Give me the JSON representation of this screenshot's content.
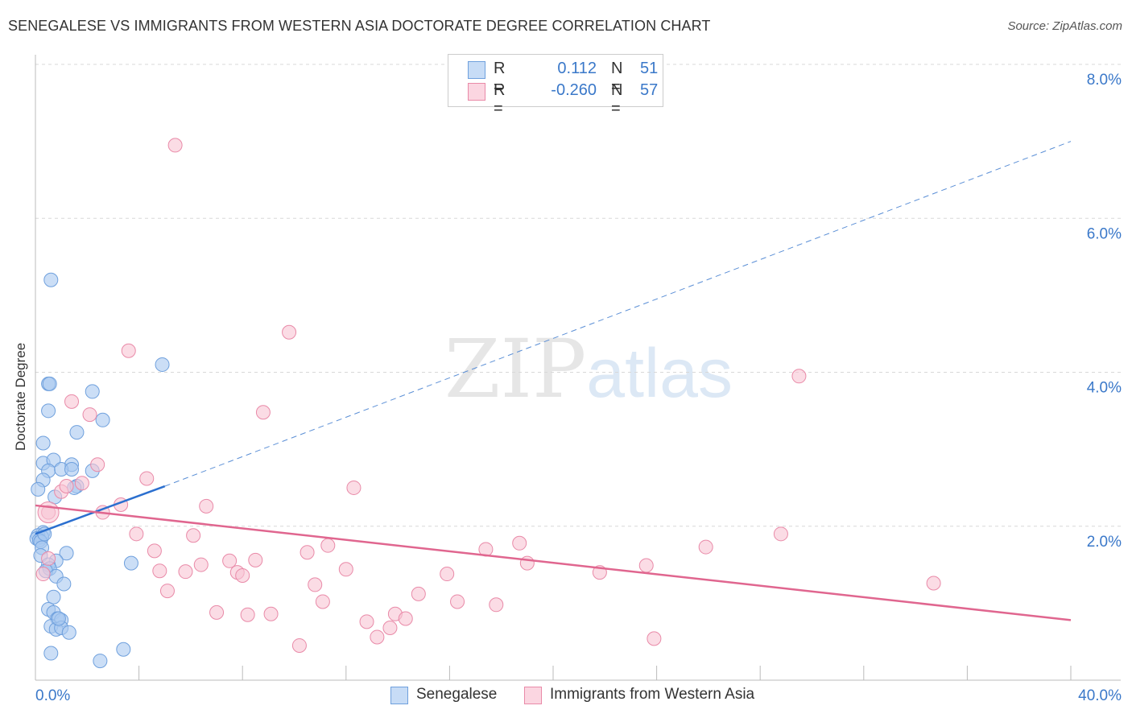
{
  "title": "SENEGALESE VS IMMIGRANTS FROM WESTERN ASIA DOCTORATE DEGREE CORRELATION CHART",
  "source": "Source: ZipAtlas.com",
  "watermark": {
    "zip": "ZIP",
    "atlas": "atlas"
  },
  "legend": {
    "rows": [
      {
        "r_label": "R =",
        "r_value": "0.112",
        "n_label": "N =",
        "n_value": "51",
        "color": "#a9c8f0",
        "border": "#6fa0dd"
      },
      {
        "r_label": "R =",
        "r_value": "-0.260",
        "n_label": "N =",
        "n_value": "57",
        "color": "#f8c4d4",
        "border": "#e98aa8"
      }
    ]
  },
  "bottom_legend": [
    {
      "label": "Senegalese",
      "color": "#a9c8f0",
      "border": "#6fa0dd"
    },
    {
      "label": "Immigrants from Western Asia",
      "color": "#f8c4d4",
      "border": "#e98aa8"
    }
  ],
  "chart_data": {
    "type": "scatter",
    "ylabel": "Doctorate Degree",
    "xlim": [
      0,
      40
    ],
    "ylim": [
      0,
      8
    ],
    "x_tick_labels": [
      "0.0%",
      "40.0%"
    ],
    "y_ticks": [
      2,
      4,
      6,
      8
    ],
    "y_tick_labels": [
      "2.0%",
      "4.0%",
      "6.0%",
      "8.0%"
    ],
    "grid": true,
    "series": [
      {
        "name": "Senegalese",
        "color": "#6fa0dd",
        "fill": "#a9c8f0",
        "points": [
          [
            0.6,
            5.2
          ],
          [
            4.9,
            4.1
          ],
          [
            0.5,
            3.85
          ],
          [
            0.55,
            3.85
          ],
          [
            2.2,
            3.75
          ],
          [
            0.5,
            3.5
          ],
          [
            2.6,
            3.38
          ],
          [
            1.6,
            3.22
          ],
          [
            0.3,
            3.08
          ],
          [
            0.3,
            2.82
          ],
          [
            0.7,
            2.86
          ],
          [
            1.4,
            2.8
          ],
          [
            0.5,
            2.72
          ],
          [
            1.0,
            2.74
          ],
          [
            1.4,
            2.74
          ],
          [
            2.2,
            2.72
          ],
          [
            0.3,
            2.6
          ],
          [
            1.6,
            2.52
          ],
          [
            1.5,
            2.5
          ],
          [
            0.1,
            2.48
          ],
          [
            0.75,
            2.38
          ],
          [
            0.3,
            1.92
          ],
          [
            0.1,
            1.88
          ],
          [
            0.05,
            1.84
          ],
          [
            0.25,
            1.86
          ],
          [
            0.15,
            1.82
          ],
          [
            0.2,
            1.8
          ],
          [
            0.25,
            1.72
          ],
          [
            0.2,
            1.62
          ],
          [
            1.2,
            1.65
          ],
          [
            0.8,
            1.55
          ],
          [
            3.7,
            1.52
          ],
          [
            0.5,
            1.5
          ],
          [
            0.55,
            1.45
          ],
          [
            0.4,
            1.42
          ],
          [
            0.8,
            1.35
          ],
          [
            1.1,
            1.25
          ],
          [
            0.7,
            1.08
          ],
          [
            0.5,
            0.92
          ],
          [
            0.7,
            0.88
          ],
          [
            0.85,
            0.8
          ],
          [
            1.0,
            0.78
          ],
          [
            0.6,
            0.7
          ],
          [
            0.8,
            0.66
          ],
          [
            1.0,
            0.68
          ],
          [
            1.3,
            0.62
          ],
          [
            3.4,
            0.4
          ],
          [
            0.6,
            0.35
          ],
          [
            2.5,
            0.25
          ],
          [
            0.9,
            0.8
          ],
          [
            0.35,
            1.9
          ]
        ],
        "trend": {
          "x": [
            0,
            5.0
          ],
          "y": [
            1.9,
            2.52
          ]
        },
        "trend_extended": {
          "x": [
            5.0,
            40
          ],
          "y": [
            2.52,
            7.0
          ]
        }
      },
      {
        "name": "Immigrants from Western Asia",
        "color": "#e98aa8",
        "fill": "#f8c4d4",
        "points": [
          [
            5.4,
            6.95
          ],
          [
            9.8,
            4.52
          ],
          [
            3.6,
            4.28
          ],
          [
            29.5,
            3.95
          ],
          [
            1.4,
            3.62
          ],
          [
            8.8,
            3.48
          ],
          [
            2.1,
            3.45
          ],
          [
            2.4,
            2.8
          ],
          [
            4.3,
            2.62
          ],
          [
            1.8,
            2.56
          ],
          [
            1.0,
            2.45
          ],
          [
            12.3,
            2.5
          ],
          [
            1.2,
            2.52
          ],
          [
            3.3,
            2.28
          ],
          [
            6.6,
            2.26
          ],
          [
            2.6,
            2.18
          ],
          [
            0.5,
            2.18
          ],
          [
            3.9,
            1.9
          ],
          [
            6.1,
            1.88
          ],
          [
            28.8,
            1.9
          ],
          [
            11.3,
            1.75
          ],
          [
            18.7,
            1.78
          ],
          [
            25.9,
            1.73
          ],
          [
            4.6,
            1.68
          ],
          [
            10.5,
            1.66
          ],
          [
            17.4,
            1.7
          ],
          [
            0.5,
            1.58
          ],
          [
            7.5,
            1.55
          ],
          [
            8.5,
            1.56
          ],
          [
            6.4,
            1.5
          ],
          [
            19.0,
            1.52
          ],
          [
            23.6,
            1.49
          ],
          [
            0.3,
            1.38
          ],
          [
            4.8,
            1.42
          ],
          [
            5.8,
            1.41
          ],
          [
            7.8,
            1.4
          ],
          [
            8.0,
            1.36
          ],
          [
            12.0,
            1.44
          ],
          [
            15.9,
            1.38
          ],
          [
            21.8,
            1.4
          ],
          [
            10.8,
            1.24
          ],
          [
            34.7,
            1.26
          ],
          [
            5.1,
            1.16
          ],
          [
            14.8,
            1.12
          ],
          [
            11.1,
            1.02
          ],
          [
            16.3,
            1.02
          ],
          [
            17.8,
            0.98
          ],
          [
            7.0,
            0.88
          ],
          [
            8.2,
            0.85
          ],
          [
            9.1,
            0.86
          ],
          [
            13.9,
            0.86
          ],
          [
            12.8,
            0.76
          ],
          [
            14.3,
            0.8
          ],
          [
            13.7,
            0.68
          ],
          [
            13.2,
            0.56
          ],
          [
            23.9,
            0.54
          ],
          [
            10.2,
            0.45
          ]
        ],
        "trend": {
          "x": [
            0,
            40
          ],
          "y": [
            2.27,
            0.78
          ]
        }
      }
    ]
  }
}
